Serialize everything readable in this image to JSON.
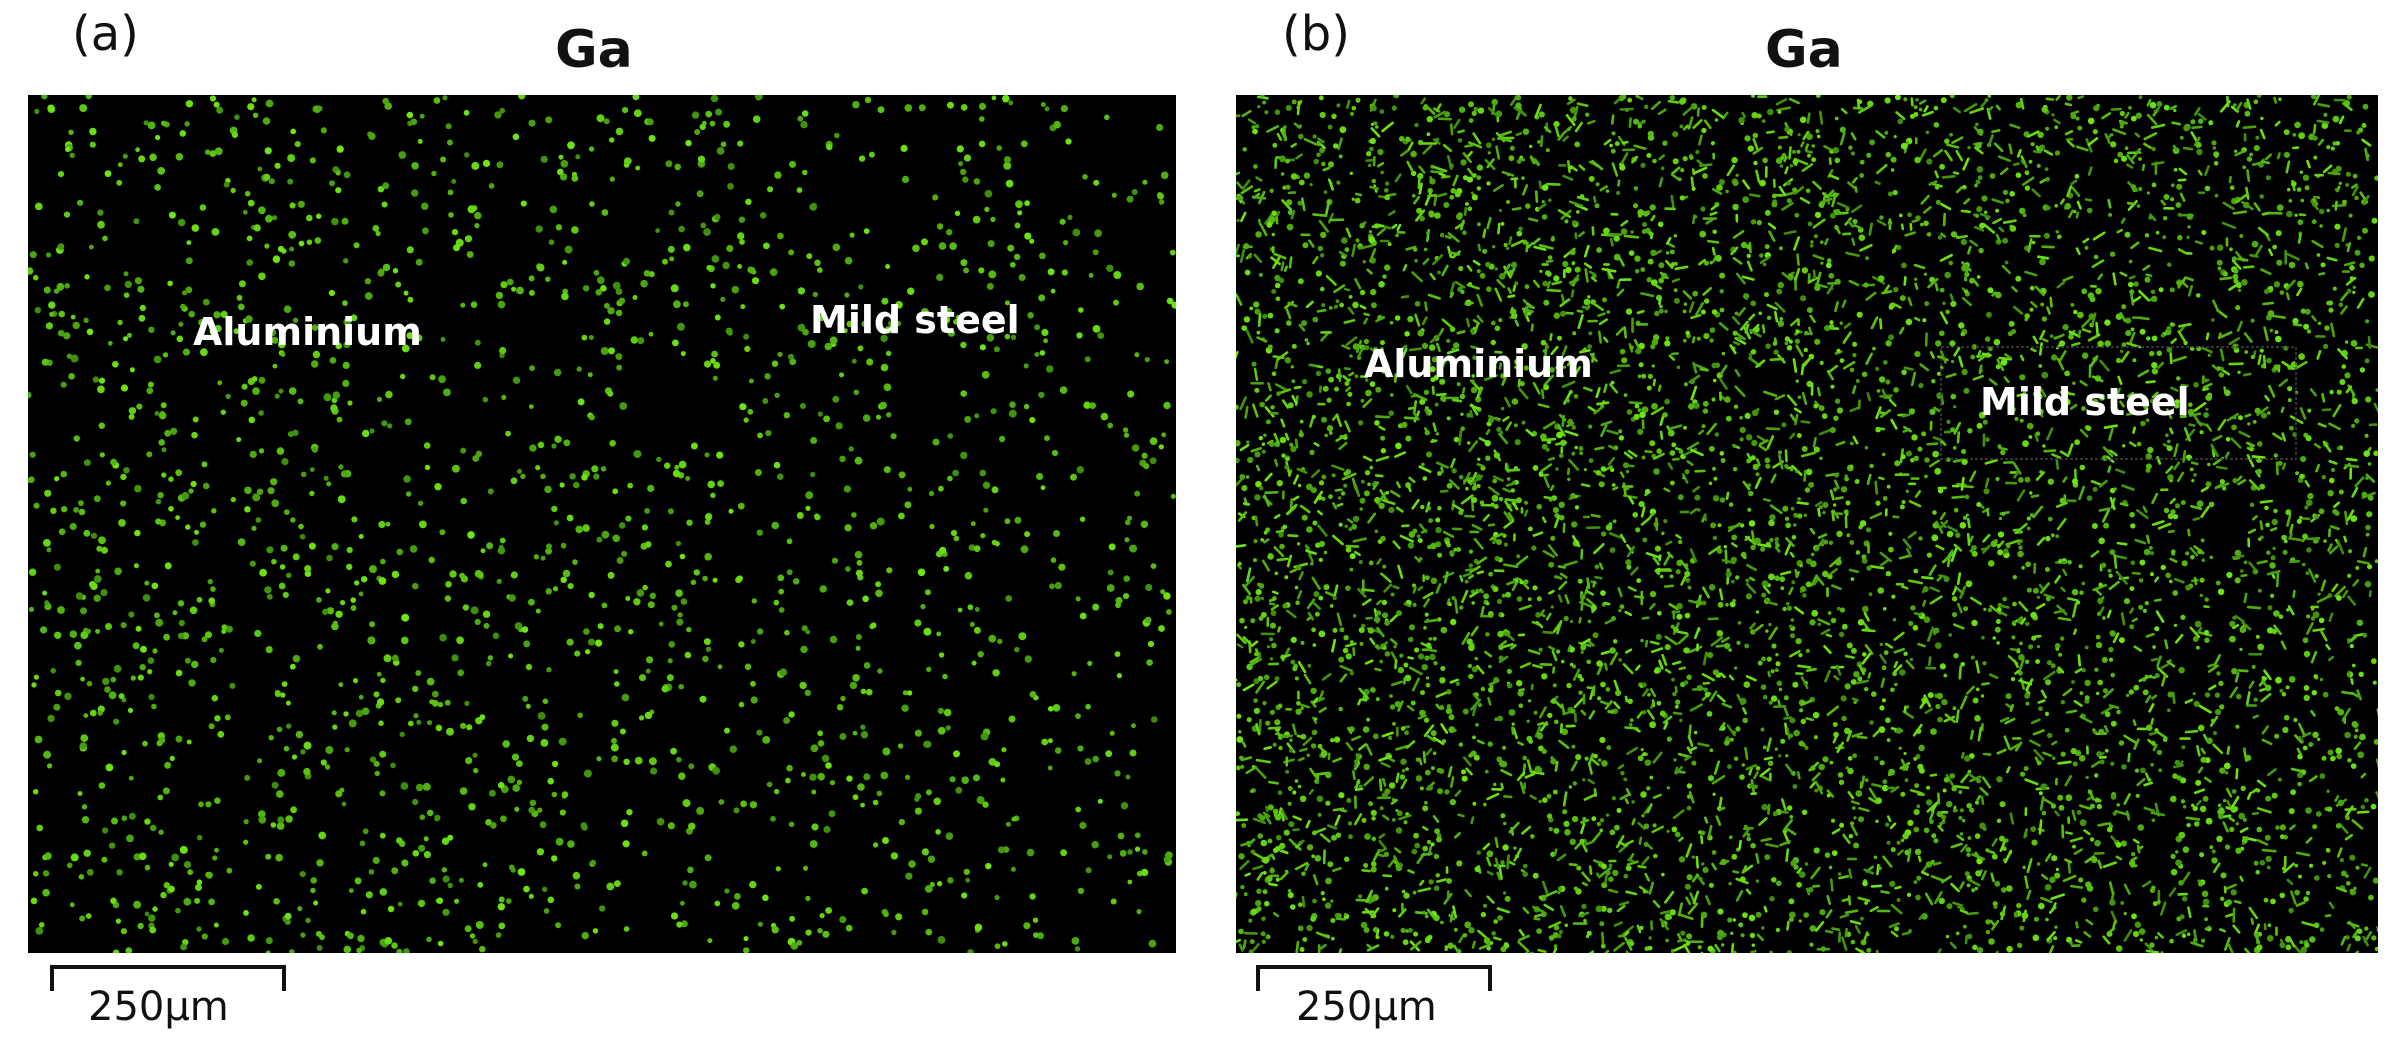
{
  "panels": [
    {
      "letter": "(a)",
      "element": "Ga",
      "regions": [
        "Aluminium",
        "Mild steel"
      ],
      "scale_label": "250μm",
      "dot_color": "#7fe81e",
      "density_left": 0.55,
      "density_right": 0.35
    },
    {
      "letter": "(b)",
      "element": "Ga",
      "regions": [
        "Aluminium",
        "Mild steel"
      ],
      "scale_label": "250μm",
      "dot_color": "#6fd41a",
      "density_left": 0.85,
      "density_right": 0.6
    }
  ]
}
